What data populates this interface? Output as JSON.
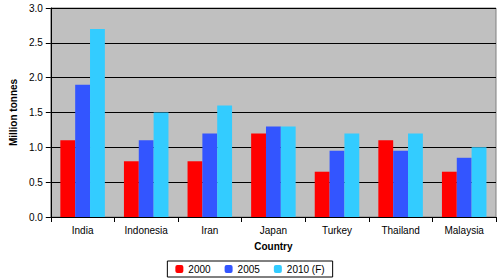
{
  "chart_data": {
    "type": "bar",
    "x_label": "Country",
    "y_label": "Million tonnes",
    "categories": [
      "India",
      "Indonesia",
      "Iran",
      "Japan",
      "Turkey",
      "Thailand",
      "Malaysia"
    ],
    "series": [
      {
        "name": "2000",
        "color": "#ff0000",
        "values": [
          1.1,
          0.8,
          0.8,
          1.2,
          0.65,
          1.1,
          0.65
        ]
      },
      {
        "name": "2005",
        "color": "#3355ff",
        "values": [
          1.9,
          1.1,
          1.2,
          1.3,
          0.95,
          0.95,
          0.85
        ]
      },
      {
        "name": "2010 (F)",
        "color": "#33ccff",
        "values": [
          2.7,
          1.5,
          1.6,
          1.3,
          1.2,
          1.2,
          1.0
        ]
      }
    ],
    "ylim": [
      0,
      3
    ],
    "yticks": [
      {
        "value": 0,
        "label": "0.0"
      },
      0.5,
      {
        "value": 1,
        "label": "1.0"
      },
      1.5,
      {
        "value": 2,
        "label": "2.0"
      },
      2.5,
      {
        "value": 3,
        "label": "3.0"
      }
    ],
    "grid": true,
    "legend": "bottom"
  }
}
